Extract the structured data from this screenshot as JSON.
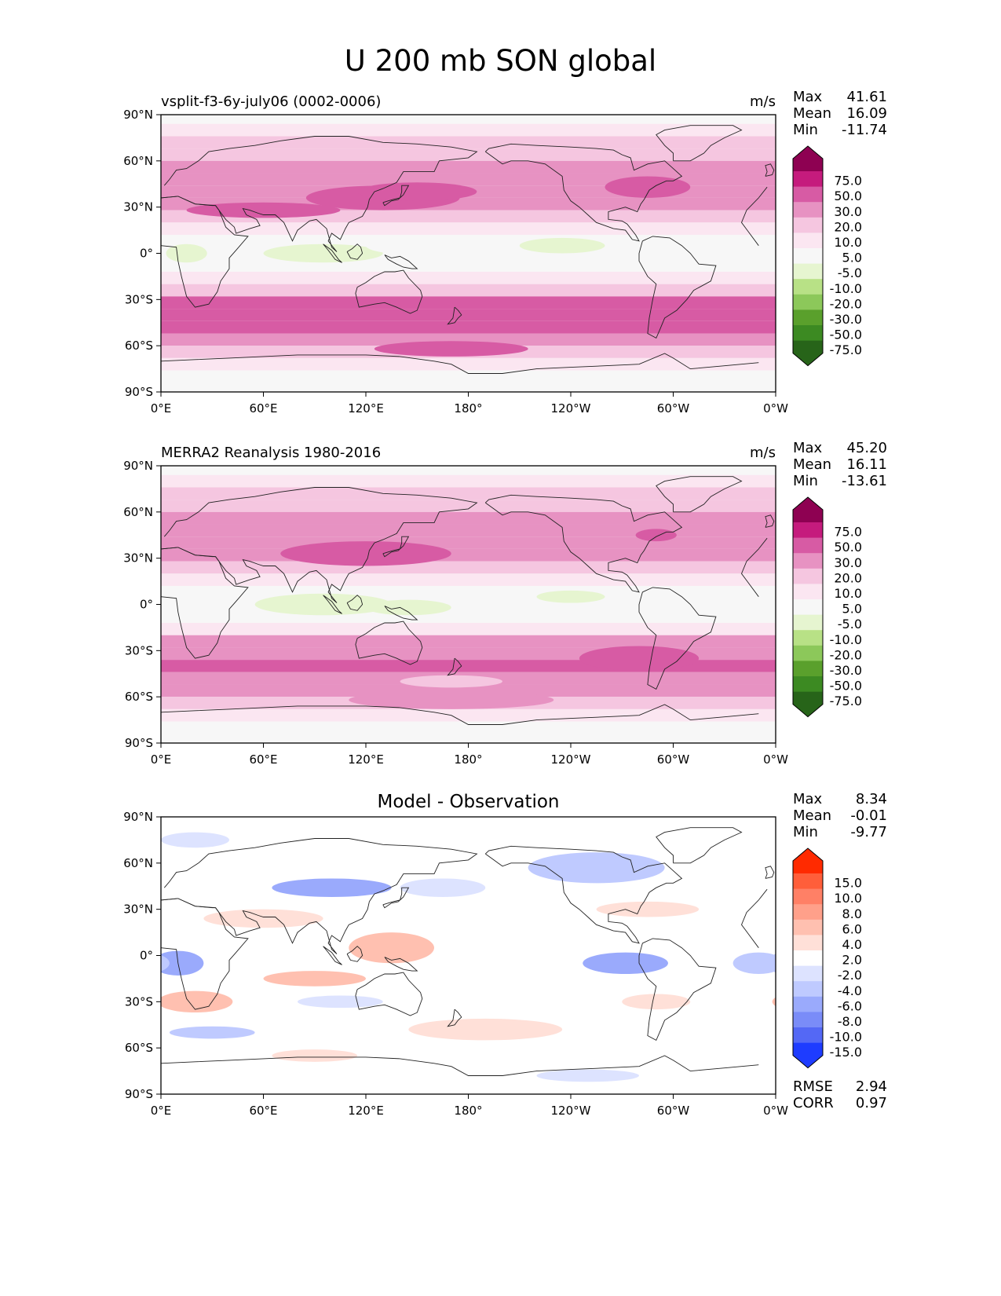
{
  "figure": {
    "title": "U 200 mb SON global"
  },
  "chart_data": [
    {
      "type": "contour-map",
      "name": "test",
      "title_left": "vsplit-f3-6y-july06 (0002-0006)",
      "title_center": "",
      "units": "m/s",
      "stats": [
        {
          "label": "Max",
          "value": "41.61"
        },
        {
          "label": "Mean",
          "value": "16.09"
        },
        {
          "label": "Min",
          "value": "-11.74"
        }
      ],
      "extra_stats": [],
      "xticks": [
        "0°E",
        "60°E",
        "120°E",
        "180°",
        "120°W",
        "60°W",
        "0°W"
      ],
      "yticks": [
        "90°N",
        "60°N",
        "30°N",
        "0°",
        "30°S",
        "60°S",
        "90°S"
      ],
      "xlim": [
        0,
        360
      ],
      "ylim": [
        -90,
        90
      ],
      "colorbar": {
        "labels": [
          "75.0",
          "50.0",
          "30.0",
          "20.0",
          "10.0",
          "5.0",
          "-5.0",
          "-10.0",
          "-20.0",
          "-30.0",
          "-50.0",
          "-75.0"
        ],
        "colors": [
          "#8e0152",
          "#c51b7d",
          "#d75ba4",
          "#e792c2",
          "#f5c6e0",
          "#fbe6f1",
          "#f7f7f7",
          "#e6f5d0",
          "#b8e186",
          "#8cc85a",
          "#5aa02c",
          "#3c8a22",
          "#276419"
        ]
      },
      "bands": [
        {
          "lat": 88,
          "value": 3
        },
        {
          "lat": 80,
          "value": 9
        },
        {
          "lat": 72,
          "value": 15
        },
        {
          "lat": 64,
          "value": 18
        },
        {
          "lat": 56,
          "value": 22
        },
        {
          "lat": 48,
          "value": 26
        },
        {
          "lat": 40,
          "value": 28
        },
        {
          "lat": 32,
          "value": 25
        },
        {
          "lat": 24,
          "value": 15
        },
        {
          "lat": 16,
          "value": 7
        },
        {
          "lat": 8,
          "value": 1
        },
        {
          "lat": 0,
          "value": -2
        },
        {
          "lat": -8,
          "value": 2
        },
        {
          "lat": -16,
          "value": 9
        },
        {
          "lat": -24,
          "value": 20
        },
        {
          "lat": -32,
          "value": 32
        },
        {
          "lat": -40,
          "value": 33
        },
        {
          "lat": -48,
          "value": 31
        },
        {
          "lat": -56,
          "value": 26
        },
        {
          "lat": -64,
          "value": 15
        },
        {
          "lat": -72,
          "value": 7
        },
        {
          "lat": -80,
          "value": 3
        },
        {
          "lat": -88,
          "value": 0
        }
      ],
      "blobs": [
        {
          "lon": 130,
          "lat": 36,
          "rlon": 45,
          "rlat": 8,
          "value": 35
        },
        {
          "lon": 150,
          "lat": 40,
          "rlon": 35,
          "rlat": 6,
          "value": 33
        },
        {
          "lon": 285,
          "lat": 43,
          "rlon": 25,
          "rlat": 7,
          "value": 35
        },
        {
          "lon": 60,
          "lat": 28,
          "rlon": 45,
          "rlat": 5,
          "value": 31
        },
        {
          "lon": 95,
          "lat": 0,
          "rlon": 35,
          "rlat": 6,
          "value": -7
        },
        {
          "lon": 15,
          "lat": 0,
          "rlon": 12,
          "rlat": 6,
          "value": -8
        },
        {
          "lon": 235,
          "lat": 5,
          "rlon": 25,
          "rlat": 5,
          "value": -6
        },
        {
          "lon": 170,
          "lat": -62,
          "rlon": 45,
          "rlat": 5,
          "value": 32
        },
        {
          "lon": 150,
          "lat": 5,
          "rlon": 30,
          "rlat": 6,
          "value": 4
        }
      ]
    },
    {
      "type": "contour-map",
      "name": "reference",
      "title_left": "MERRA2 Reanalysis 1980-2016",
      "title_center": "",
      "units": "m/s",
      "stats": [
        {
          "label": "Max",
          "value": "45.20"
        },
        {
          "label": "Mean",
          "value": "16.11"
        },
        {
          "label": "Min",
          "value": "-13.61"
        }
      ],
      "extra_stats": [],
      "xticks": [
        "0°E",
        "60°E",
        "120°E",
        "180°",
        "120°W",
        "60°W",
        "0°W"
      ],
      "yticks": [
        "90°N",
        "60°N",
        "30°N",
        "0°",
        "30°S",
        "60°S",
        "90°S"
      ],
      "xlim": [
        0,
        360
      ],
      "ylim": [
        -90,
        90
      ],
      "colorbar": {
        "labels": [
          "75.0",
          "50.0",
          "30.0",
          "20.0",
          "10.0",
          "5.0",
          "-5.0",
          "-10.0",
          "-20.0",
          "-30.0",
          "-50.0",
          "-75.0"
        ],
        "colors": [
          "#8e0152",
          "#c51b7d",
          "#d75ba4",
          "#e792c2",
          "#f5c6e0",
          "#fbe6f1",
          "#f7f7f7",
          "#e6f5d0",
          "#b8e186",
          "#8cc85a",
          "#5aa02c",
          "#3c8a22",
          "#276419"
        ]
      },
      "bands": [
        {
          "lat": 88,
          "value": 3
        },
        {
          "lat": 80,
          "value": 8
        },
        {
          "lat": 72,
          "value": 14
        },
        {
          "lat": 64,
          "value": 18
        },
        {
          "lat": 56,
          "value": 21
        },
        {
          "lat": 48,
          "value": 25
        },
        {
          "lat": 40,
          "value": 27
        },
        {
          "lat": 32,
          "value": 24
        },
        {
          "lat": 24,
          "value": 14
        },
        {
          "lat": 16,
          "value": 6
        },
        {
          "lat": 8,
          "value": 1
        },
        {
          "lat": 0,
          "value": -2
        },
        {
          "lat": -8,
          "value": 3
        },
        {
          "lat": -16,
          "value": 10
        },
        {
          "lat": -24,
          "value": 22
        },
        {
          "lat": -32,
          "value": 30
        },
        {
          "lat": -40,
          "value": 32
        },
        {
          "lat": -48,
          "value": 27
        },
        {
          "lat": -56,
          "value": 22
        },
        {
          "lat": -64,
          "value": 15
        },
        {
          "lat": -72,
          "value": 8
        },
        {
          "lat": -80,
          "value": 3
        },
        {
          "lat": -88,
          "value": 0
        }
      ],
      "blobs": [
        {
          "lon": 120,
          "lat": 33,
          "rlon": 50,
          "rlat": 8,
          "value": 36
        },
        {
          "lon": 290,
          "lat": 45,
          "rlon": 12,
          "rlat": 4,
          "value": 32
        },
        {
          "lon": 95,
          "lat": 0,
          "rlon": 40,
          "rlat": 7,
          "value": -9
        },
        {
          "lon": 145,
          "lat": -2,
          "rlon": 25,
          "rlat": 5,
          "value": -7
        },
        {
          "lon": 240,
          "lat": 5,
          "rlon": 20,
          "rlat": 4,
          "value": -6
        },
        {
          "lon": 280,
          "lat": -35,
          "rlon": 35,
          "rlat": 8,
          "value": 34
        },
        {
          "lon": 170,
          "lat": -50,
          "rlon": 30,
          "rlat": 4,
          "value": 18
        },
        {
          "lon": 170,
          "lat": -62,
          "rlon": 60,
          "rlat": 6,
          "value": 26
        }
      ]
    },
    {
      "type": "contour-map",
      "name": "difference",
      "title_left": "",
      "title_center": "Model - Observation",
      "units": "",
      "stats": [
        {
          "label": "Max",
          "value": "8.34"
        },
        {
          "label": "Mean",
          "value": "-0.01"
        },
        {
          "label": "Min",
          "value": "-9.77"
        }
      ],
      "extra_stats": [
        {
          "label": "RMSE",
          "value": "2.94"
        },
        {
          "label": "CORR",
          "value": "0.97"
        }
      ],
      "xticks": [
        "0°E",
        "60°E",
        "120°E",
        "180°",
        "120°W",
        "60°W",
        "0°W"
      ],
      "yticks": [
        "90°N",
        "60°N",
        "30°N",
        "0°",
        "30°S",
        "60°S",
        "90°S"
      ],
      "xlim": [
        0,
        360
      ],
      "ylim": [
        -90,
        90
      ],
      "colorbar": {
        "labels": [
          "15.0",
          "10.0",
          "8.0",
          "6.0",
          "4.0",
          "2.0",
          "-2.0",
          "-4.0",
          "-6.0",
          "-8.0",
          "-10.0",
          "-15.0"
        ],
        "colors": [
          "#ff2a00",
          "#ff5e3a",
          "#ff8066",
          "#ffa08a",
          "#ffc0b0",
          "#ffe0d8",
          "#ffffff",
          "#dde3ff",
          "#bfcaff",
          "#9aaafc",
          "#7a8cf8",
          "#5468f5",
          "#1e3cff"
        ]
      },
      "bands": [
        {
          "lat": 0,
          "value": 0
        }
      ],
      "blobs": [
        {
          "lon": 255,
          "lat": 57,
          "rlon": 40,
          "rlat": 10,
          "value": -5
        },
        {
          "lon": 100,
          "lat": 44,
          "rlon": 35,
          "rlat": 6,
          "value": -6
        },
        {
          "lon": 165,
          "lat": 44,
          "rlon": 25,
          "rlat": 6,
          "value": -3
        },
        {
          "lon": 20,
          "lat": 75,
          "rlon": 20,
          "rlat": 5,
          "value": -3
        },
        {
          "lon": 60,
          "lat": 24,
          "rlon": 35,
          "rlat": 6,
          "value": 4
        },
        {
          "lon": 135,
          "lat": 5,
          "rlon": 25,
          "rlat": 10,
          "value": 5
        },
        {
          "lon": 90,
          "lat": -15,
          "rlon": 30,
          "rlat": 5,
          "value": 5
        },
        {
          "lon": 20,
          "lat": -30,
          "rlon": 22,
          "rlat": 7,
          "value": 6
        },
        {
          "lon": 10,
          "lat": -5,
          "rlon": 15,
          "rlat": 8,
          "value": -7
        },
        {
          "lon": 272,
          "lat": -5,
          "rlon": 25,
          "rlat": 7,
          "value": -6
        },
        {
          "lon": 350,
          "lat": -5,
          "rlon": 15,
          "rlat": 7,
          "value": -5
        },
        {
          "lon": 190,
          "lat": -48,
          "rlon": 45,
          "rlat": 7,
          "value": 3
        },
        {
          "lon": 250,
          "lat": -78,
          "rlon": 30,
          "rlat": 4,
          "value": -3
        },
        {
          "lon": 90,
          "lat": -65,
          "rlon": 25,
          "rlat": 4,
          "value": 3
        },
        {
          "lon": 105,
          "lat": -30,
          "rlon": 25,
          "rlat": 4,
          "value": -3
        },
        {
          "lon": 285,
          "lat": 30,
          "rlon": 30,
          "rlat": 5,
          "value": 3
        },
        {
          "lon": 30,
          "lat": -50,
          "rlon": 25,
          "rlat": 4,
          "value": -4
        },
        {
          "lon": 290,
          "lat": -30,
          "rlon": 20,
          "rlat": 5,
          "value": 3
        }
      ]
    }
  ]
}
